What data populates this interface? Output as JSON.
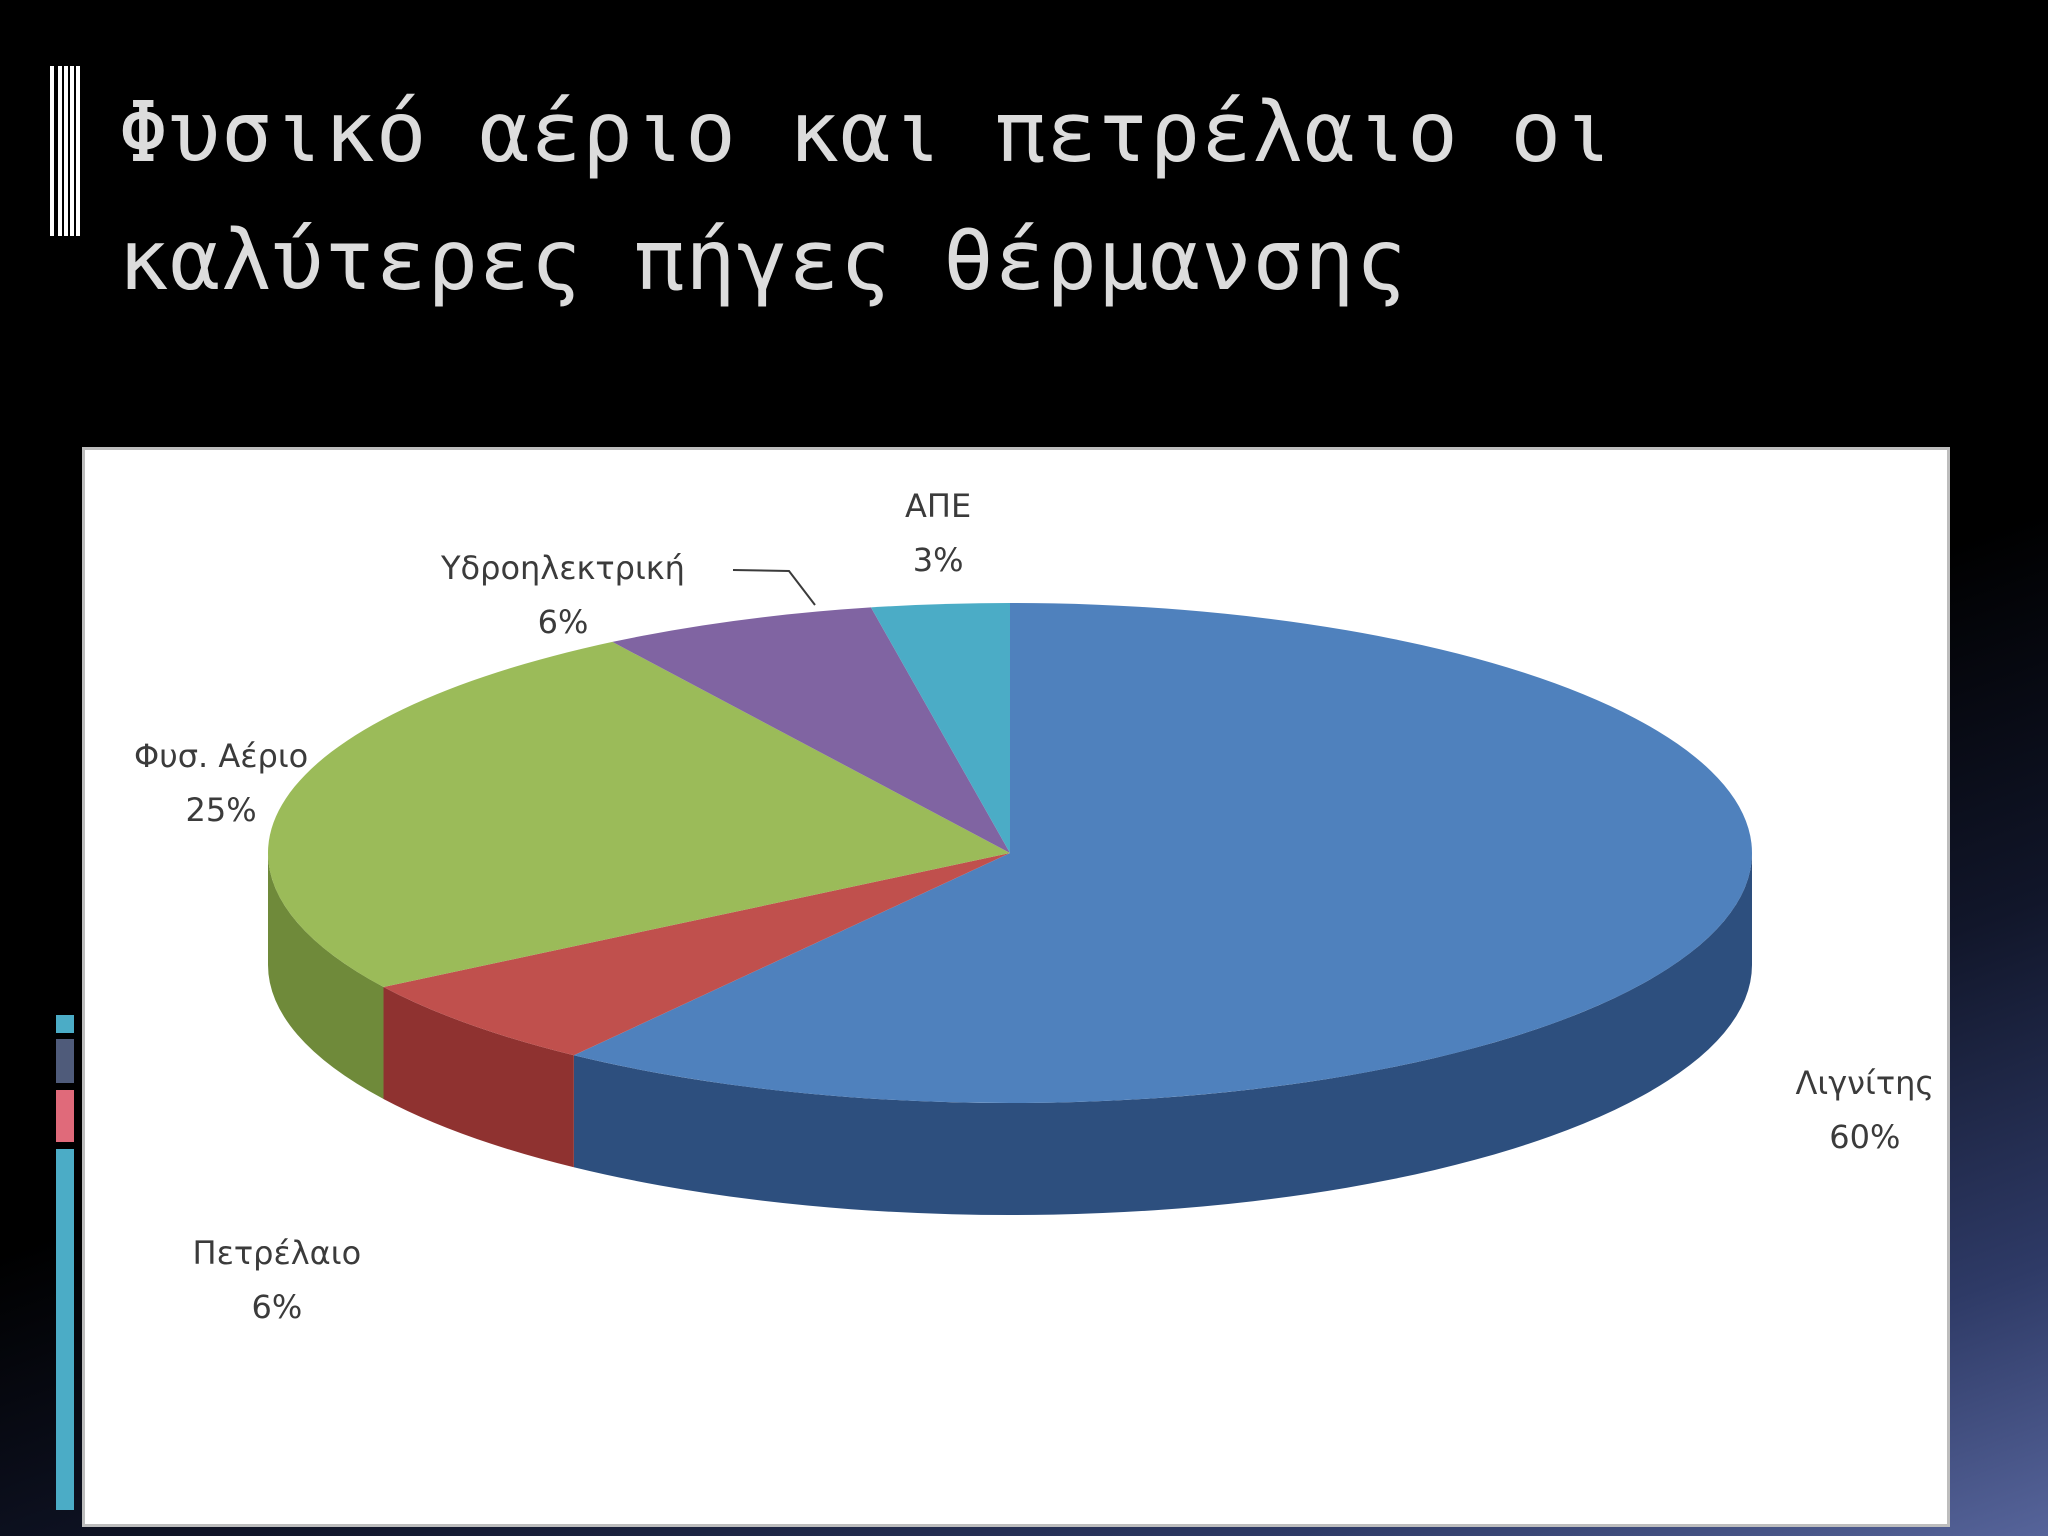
{
  "slide": {
    "title": "Φυσικό αέριο και πετρέλαιο οι\nκαλύτερες πήγες θέρμανσης"
  },
  "chart_data": {
    "type": "pie",
    "title": "",
    "slices": [
      {
        "name": "Λιγνίτης",
        "value": 60,
        "label": "60%",
        "color": "#4f81bd",
        "side_color": "#2d4f7e"
      },
      {
        "name": "Πετρέλαιο",
        "value": 6,
        "label": "6%",
        "color": "#c0504d",
        "side_color": "#8f3230"
      },
      {
        "name": "Φυσ. Αέριο",
        "value": 25,
        "label": "25%",
        "color": "#9bbb59",
        "side_color": "#6f8a3a"
      },
      {
        "name": "Υδροηλεκτρική",
        "value": 6,
        "label": "6%",
        "color": "#8064a2",
        "side_color": "#5a4375"
      },
      {
        "name": "ΑΠΕ",
        "value": 3,
        "label": "3%",
        "color": "#4bacc6",
        "side_color": "#2f7f95"
      }
    ]
  },
  "accent_colors": [
    "#4bacc6",
    "#4f5b7a",
    "#e06a7a",
    "#4bacc6"
  ]
}
